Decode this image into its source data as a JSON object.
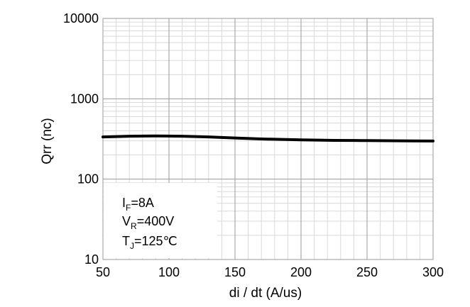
{
  "chart_data": {
    "type": "line",
    "title": "",
    "xlabel": "di / dt (A/us)",
    "ylabel": "Qrr  (nc)",
    "xlim": [
      50,
      300
    ],
    "ylim": [
      10,
      10000
    ],
    "yscale": "log",
    "grid": true,
    "x_ticks": [
      "50",
      "100",
      "150",
      "200",
      "250",
      "300"
    ],
    "y_ticks": [
      "10",
      "100",
      "1000",
      "10000"
    ],
    "series": [
      {
        "x": [
          50,
          70,
          90,
          110,
          130,
          150,
          175,
          200,
          225,
          250,
          275,
          300
        ],
        "values": [
          335,
          342,
          345,
          342,
          335,
          325,
          315,
          308,
          304,
          302,
          300,
          298
        ]
      }
    ],
    "line_color": "#000000",
    "grid_color": "#d9d9d9",
    "legend": "none"
  },
  "conditions": {
    "i_main": "I",
    "i_sub": "F",
    "i_val": "=8A",
    "v_main": "V",
    "v_sub": "R",
    "v_val": "=400V",
    "t_main": "T",
    "t_sub": "J",
    "t_val": "=125℃"
  }
}
